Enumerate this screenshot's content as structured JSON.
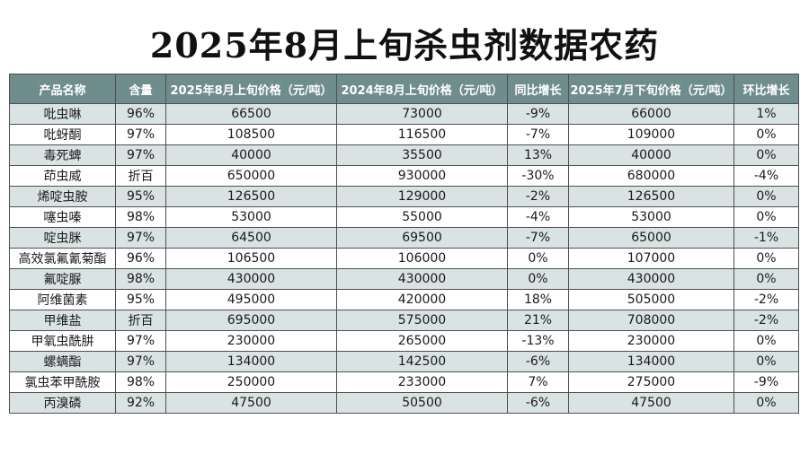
{
  "title": "2025年8月上旬杀虫剂数据农药",
  "table": {
    "headers": [
      "产品名称",
      "含量",
      "2025年8月上旬价格（元/吨）",
      "2024年8月上旬价格（元/吨）",
      "同比增长",
      "2025年7月下旬价格（元/吨）",
      "环比增长"
    ],
    "rows": [
      [
        "吡虫啉",
        "96%",
        "66500",
        "73000",
        "-9%",
        "66000",
        "1%"
      ],
      [
        "吡蚜酮",
        "97%",
        "108500",
        "116500",
        "-7%",
        "109000",
        "0%"
      ],
      [
        "毒死蜱",
        "97%",
        "40000",
        "35500",
        "13%",
        "40000",
        "0%"
      ],
      [
        "茚虫威",
        "折百",
        "650000",
        "930000",
        "-30%",
        "680000",
        "-4%"
      ],
      [
        "烯啶虫胺",
        "95%",
        "126500",
        "129000",
        "-2%",
        "126500",
        "0%"
      ],
      [
        "噻虫嗪",
        "98%",
        "53000",
        "55000",
        "-4%",
        "53000",
        "0%"
      ],
      [
        "啶虫脒",
        "97%",
        "64500",
        "69500",
        "-7%",
        "65000",
        "-1%"
      ],
      [
        "高效氯氟氰菊酯",
        "96%",
        "106500",
        "106000",
        "0%",
        "107000",
        "0%"
      ],
      [
        "氟啶脲",
        "98%",
        "430000",
        "430000",
        "0%",
        "430000",
        "0%"
      ],
      [
        "阿维菌素",
        "95%",
        "495000",
        "420000",
        "18%",
        "505000",
        "-2%"
      ],
      [
        "甲维盐",
        "折百",
        "695000",
        "575000",
        "21%",
        "708000",
        "-2%"
      ],
      [
        "甲氧虫酰肼",
        "97%",
        "230000",
        "265000",
        "-13%",
        "230000",
        "0%"
      ],
      [
        "螺螨酯",
        "97%",
        "134000",
        "142500",
        "-6%",
        "134000",
        "0%"
      ],
      [
        "氯虫苯甲酰胺",
        "98%",
        "250000",
        "233000",
        "7%",
        "275000",
        "-9%"
      ],
      [
        "丙溴磷",
        "92%",
        "47500",
        "50500",
        "-6%",
        "47500",
        "0%"
      ]
    ]
  }
}
